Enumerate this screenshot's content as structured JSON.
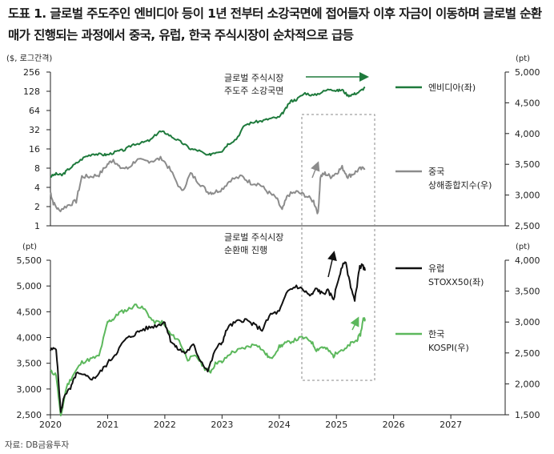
{
  "title": "도표 1. 글로벌 주도주인 엔비디아 등이 1년 전부터 소강국면에 접어들자 이후 자금이 이동하며 글로벌 순환매가 진행되는 과정에서 중국, 유럽, 한국 주식시장이 순차적으로 급등",
  "source": "자료: DB금융투자",
  "colors": {
    "nvidia": "#1e7a3c",
    "china": "#8c8c8c",
    "europe": "#111111",
    "korea": "#5cb85c",
    "arrow_green": "#1e7a3c"
  },
  "chart_data": [
    {
      "type": "line",
      "panel": "top",
      "left_unit": "($, 로그간격)",
      "right_unit": "(pt)",
      "left_scale": "log2",
      "left_ticks": [
        "256",
        "128",
        "64",
        "32",
        "16",
        "8",
        "4",
        "2",
        "1"
      ],
      "left_range": [
        1,
        256
      ],
      "right_ticks": [
        "5,000",
        "4,500",
        "4,000",
        "3,500",
        "3,000",
        "2,500"
      ],
      "right_range": [
        2500,
        5000
      ],
      "annotation": [
        "글로벌 주식시장",
        "주도주 소강국면"
      ],
      "series": [
        {
          "name": "엔비디아(좌)",
          "axis": "left",
          "x": [
            2020.0,
            2020.1,
            2020.2,
            2020.3,
            2020.45,
            2020.6,
            2020.75,
            2020.9,
            2021.0,
            2021.15,
            2021.3,
            2021.45,
            2021.6,
            2021.75,
            2021.9,
            2022.0,
            2022.15,
            2022.3,
            2022.45,
            2022.6,
            2022.75,
            2022.85,
            2023.0,
            2023.1,
            2023.25,
            2023.4,
            2023.55,
            2023.7,
            2023.85,
            2024.0,
            2024.1,
            2024.2,
            2024.3,
            2024.45,
            2024.6,
            2024.75,
            2024.9,
            2025.0,
            2025.1,
            2025.2,
            2025.3,
            2025.4,
            2025.5
          ],
          "values": [
            5.9,
            6.5,
            6.2,
            7.5,
            9.5,
            12,
            13.5,
            13,
            13,
            14.5,
            15.5,
            19,
            20,
            22,
            30,
            29,
            24,
            20,
            16,
            15,
            12.5,
            14,
            15,
            19,
            23,
            38,
            42,
            44,
            48,
            50,
            65,
            90,
            95,
            120,
            110,
            125,
            140,
            130,
            135,
            110,
            115,
            125,
            148
          ]
        },
        {
          "name": "중국 상해종합지수(우)",
          "axis": "right",
          "x": [
            2020.0,
            2020.05,
            2020.15,
            2020.3,
            2020.45,
            2020.55,
            2020.7,
            2020.85,
            2021.0,
            2021.1,
            2021.2,
            2021.35,
            2021.5,
            2021.65,
            2021.8,
            2021.95,
            2022.1,
            2022.3,
            2022.45,
            2022.6,
            2022.75,
            2022.85,
            2023.0,
            2023.15,
            2023.35,
            2023.5,
            2023.65,
            2023.8,
            2023.95,
            2024.05,
            2024.15,
            2024.3,
            2024.45,
            2024.6,
            2024.68,
            2024.72,
            2024.8,
            2024.9,
            2025.0,
            2025.1,
            2025.2,
            2025.3,
            2025.4,
            2025.5
          ],
          "values": [
            3050,
            2870,
            2750,
            2830,
            2900,
            3300,
            3300,
            3330,
            3500,
            3580,
            3450,
            3430,
            3570,
            3550,
            3560,
            3600,
            3400,
            3050,
            3350,
            3200,
            3050,
            3040,
            3100,
            3250,
            3300,
            3200,
            3180,
            3050,
            2950,
            2750,
            3000,
            3050,
            3000,
            2900,
            2700,
            3300,
            3350,
            3300,
            3360,
            3450,
            3300,
            3350,
            3420,
            3430
          ]
        }
      ]
    },
    {
      "type": "line",
      "panel": "bottom",
      "left_unit": "(pt)",
      "right_unit": "(pt)",
      "left_ticks": [
        "5,500",
        "5,000",
        "4,500",
        "4,000",
        "3,500",
        "3,000",
        "2,500"
      ],
      "left_range": [
        2500,
        5500
      ],
      "right_ticks": [
        "4,000",
        "3,500",
        "3,000",
        "2,500",
        "2,000",
        "1,500"
      ],
      "right_range": [
        1500,
        4000
      ],
      "annotation": [
        "글로벌 주식시장",
        "순환매 진행"
      ],
      "x_ticks": [
        "2020",
        "2021",
        "2022",
        "2023",
        "2024",
        "2025",
        "2026",
        "2027"
      ],
      "series": [
        {
          "name": "유럽 STOXX50(좌)",
          "axis": "left",
          "x": [
            2020.0,
            2020.1,
            2020.18,
            2020.25,
            2020.35,
            2020.45,
            2020.6,
            2020.75,
            2020.85,
            2021.0,
            2021.15,
            2021.3,
            2021.45,
            2021.6,
            2021.75,
            2021.9,
            2022.0,
            2022.1,
            2022.2,
            2022.35,
            2022.5,
            2022.6,
            2022.75,
            2022.9,
            2023.0,
            2023.1,
            2023.25,
            2023.4,
            2023.55,
            2023.7,
            2023.85,
            2024.0,
            2024.15,
            2024.3,
            2024.45,
            2024.55,
            2024.65,
            2024.75,
            2024.85,
            2024.95,
            2025.05,
            2025.15,
            2025.25,
            2025.32,
            2025.4,
            2025.45,
            2025.5
          ],
          "values": [
            3750,
            3800,
            2550,
            2900,
            3000,
            3300,
            3250,
            3200,
            3300,
            3500,
            3700,
            3950,
            4050,
            4150,
            4200,
            4250,
            4300,
            3950,
            3800,
            3700,
            3850,
            3600,
            3350,
            3800,
            3900,
            4200,
            4300,
            4350,
            4250,
            4150,
            4450,
            4500,
            4900,
            5000,
            4900,
            4800,
            4950,
            4850,
            4900,
            4750,
            5200,
            5500,
            5000,
            4700,
            5350,
            5400,
            5300
          ]
        },
        {
          "name": "한국 KOSPI(우)",
          "axis": "right",
          "x": [
            2020.0,
            2020.1,
            2020.18,
            2020.28,
            2020.4,
            2020.55,
            2020.7,
            2020.85,
            2021.0,
            2021.1,
            2021.2,
            2021.35,
            2021.5,
            2021.65,
            2021.8,
            2021.95,
            2022.1,
            2022.25,
            2022.4,
            2022.55,
            2022.7,
            2022.8,
            2022.9,
            2023.0,
            2023.15,
            2023.3,
            2023.45,
            2023.6,
            2023.75,
            2023.85,
            2024.0,
            2024.1,
            2024.25,
            2024.4,
            2024.55,
            2024.65,
            2024.75,
            2024.85,
            2024.95,
            2025.05,
            2025.15,
            2025.25,
            2025.35,
            2025.42,
            2025.47,
            2025.5
          ],
          "values": [
            2200,
            2150,
            1460,
            1950,
            2150,
            2350,
            2400,
            2450,
            3000,
            3050,
            3150,
            3200,
            3280,
            3200,
            3000,
            3000,
            2800,
            2700,
            2400,
            2450,
            2250,
            2200,
            2350,
            2350,
            2500,
            2550,
            2600,
            2650,
            2500,
            2400,
            2600,
            2650,
            2700,
            2750,
            2700,
            2550,
            2600,
            2550,
            2450,
            2550,
            2550,
            2650,
            2700,
            2800,
            3050,
            3050
          ]
        }
      ]
    }
  ]
}
